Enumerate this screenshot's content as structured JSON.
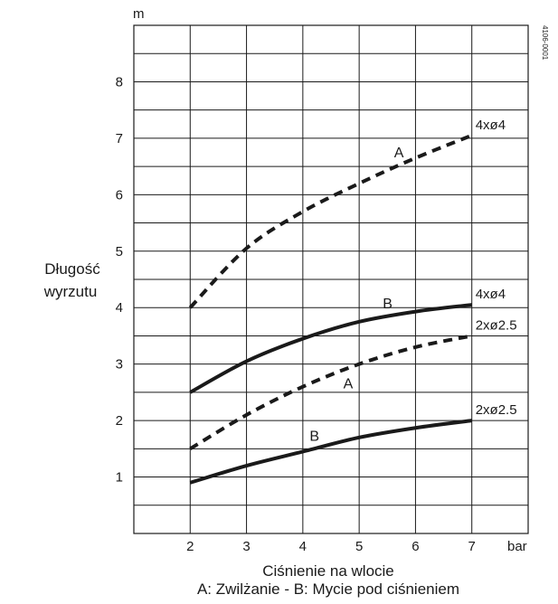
{
  "chart_data": {
    "type": "line",
    "y_unit": "m",
    "x_unit": "bar",
    "ylabel_line1": "Długość",
    "ylabel_line2": "wyrzutu",
    "xlabel": "Ciśnienie na wlocie",
    "subtitle": "A: Zwilżanie - B: Mycie pod ciśnieniem",
    "code": "4106-0001",
    "xlim": [
      1,
      8
    ],
    "ylim": [
      0,
      9
    ],
    "x_ticks": [
      2,
      3,
      4,
      5,
      6,
      7
    ],
    "y_ticks": [
      1,
      2,
      3,
      4,
      5,
      6,
      7,
      8
    ],
    "grid": true,
    "series": [
      {
        "name": "4xø4",
        "curve_label": "A",
        "style": "dashed",
        "x": [
          2,
          3,
          4,
          5,
          6,
          7
        ],
        "y": [
          4.0,
          5.05,
          5.7,
          6.2,
          6.65,
          7.05
        ]
      },
      {
        "name": "4xø4",
        "curve_label": "B",
        "style": "solid",
        "x": [
          2,
          3,
          4,
          5,
          6,
          7
        ],
        "y": [
          2.5,
          3.05,
          3.45,
          3.75,
          3.93,
          4.05
        ]
      },
      {
        "name": "2xø2.5",
        "curve_label": "A",
        "style": "dashed",
        "x": [
          2,
          3,
          4,
          5,
          6,
          7
        ],
        "y": [
          1.5,
          2.1,
          2.6,
          3.0,
          3.3,
          3.5
        ]
      },
      {
        "name": "2xø2.5",
        "curve_label": "B",
        "style": "solid",
        "x": [
          2,
          3,
          4,
          5,
          6,
          7
        ],
        "y": [
          0.9,
          1.2,
          1.45,
          1.7,
          1.87,
          2.0
        ]
      }
    ],
    "colors": {
      "line": "#1a1a1a",
      "grid": "#1a1a1a"
    }
  }
}
